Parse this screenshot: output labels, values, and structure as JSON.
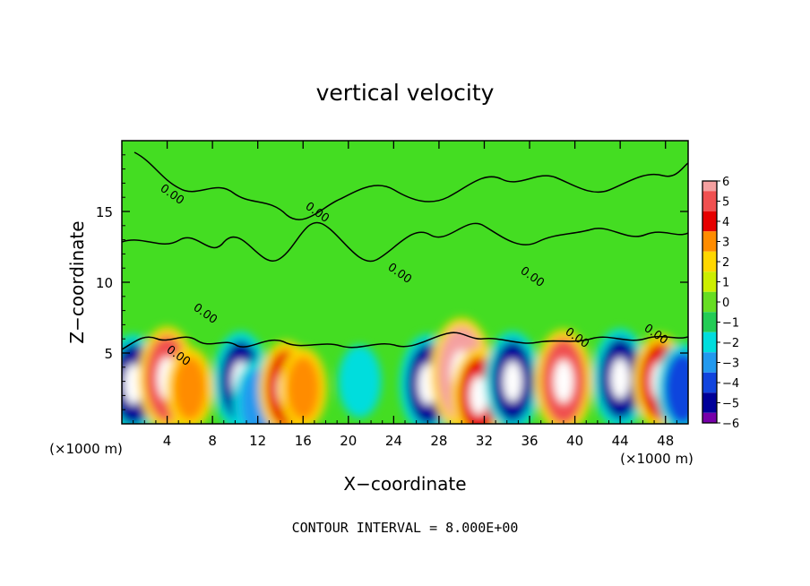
{
  "chart_data": {
    "type": "heatmap",
    "title": "vertical velocity",
    "xlabel": "X−coordinate",
    "ylabel": "Z−coordinate",
    "x_unit_left": "(×1000 m)",
    "x_unit_right": "(×1000 m)",
    "xlim": [
      0,
      50
    ],
    "ylim": [
      0,
      20
    ],
    "x_ticks": [
      4,
      8,
      12,
      16,
      20,
      24,
      28,
      32,
      36,
      40,
      44,
      48
    ],
    "x_tick_labels": [
      "4",
      "8",
      "12",
      "16",
      "20",
      "24",
      "28",
      "32",
      "36",
      "40",
      "44",
      "48"
    ],
    "y_ticks": [
      5,
      10,
      15
    ],
    "y_tick_labels": [
      "5",
      "10",
      "15"
    ],
    "colorbar": {
      "levels": [
        6,
        5,
        4,
        3,
        2,
        1,
        0,
        -1,
        -2,
        -3,
        -4,
        -5,
        -6
      ],
      "labels": [
        "6",
        "5",
        "4",
        "3",
        "2",
        "1",
        "0",
        "−1",
        "−2",
        "−3",
        "−4",
        "−5",
        "−6"
      ],
      "colors": [
        "#f4a0a0",
        "#f05050",
        "#e60000",
        "#ff8c00",
        "#ffd700",
        "#ccee00",
        "#66dd22",
        "#22cc55",
        "#00dddd",
        "#2299ee",
        "#1144dd",
        "#000099",
        "#7700aa"
      ]
    },
    "contour_label": "0.00",
    "footer": "CONTOUR INTERVAL = 8.000E+00",
    "cells": [
      {
        "x": 1.0,
        "z": 2.8,
        "w": -5.5
      },
      {
        "x": 4.0,
        "z": 3.2,
        "w": 6.0
      },
      {
        "x": 6.0,
        "z": 2.5,
        "w": 3.5
      },
      {
        "x": 10.5,
        "z": 3.0,
        "w": -5.5
      },
      {
        "x": 12.0,
        "z": 1.5,
        "w": -4.0
      },
      {
        "x": 14.5,
        "z": 2.5,
        "w": 5.0
      },
      {
        "x": 16.0,
        "z": 2.5,
        "w": 3.5
      },
      {
        "x": 21.0,
        "z": 3.0,
        "w": -2.5
      },
      {
        "x": 27.0,
        "z": 2.8,
        "w": -5.5
      },
      {
        "x": 30.0,
        "z": 3.5,
        "w": 7.0
      },
      {
        "x": 31.5,
        "z": 2.0,
        "w": 5.0
      },
      {
        "x": 34.5,
        "z": 3.0,
        "w": -5.5
      },
      {
        "x": 39.0,
        "z": 3.0,
        "w": 6.0
      },
      {
        "x": 44.0,
        "z": 3.2,
        "w": -5.5
      },
      {
        "x": 47.5,
        "z": 3.0,
        "w": 5.0
      },
      {
        "x": 49.5,
        "z": 2.5,
        "w": -4.5
      }
    ]
  }
}
